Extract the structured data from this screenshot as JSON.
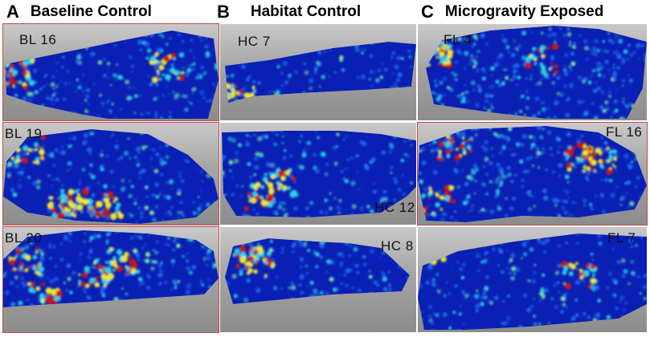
{
  "columns": [
    {
      "letter": "A",
      "title": "Baseline Control"
    },
    {
      "letter": "B",
      "title": "Habitat Control"
    },
    {
      "letter": "C",
      "title": "Microgravity Exposed"
    }
  ],
  "samples": [
    "BL 16",
    "BL 19",
    "BL 20",
    "HC 7",
    "HC 12",
    "HC 8",
    "FL 4",
    "FL 16",
    "FL 7"
  ],
  "colors": {
    "background_blue": "#0a1fb4",
    "cyan": "#28d2e6",
    "yellow": "#f0e632",
    "red": "#c8141e",
    "panel_border": "#c24a4a"
  }
}
